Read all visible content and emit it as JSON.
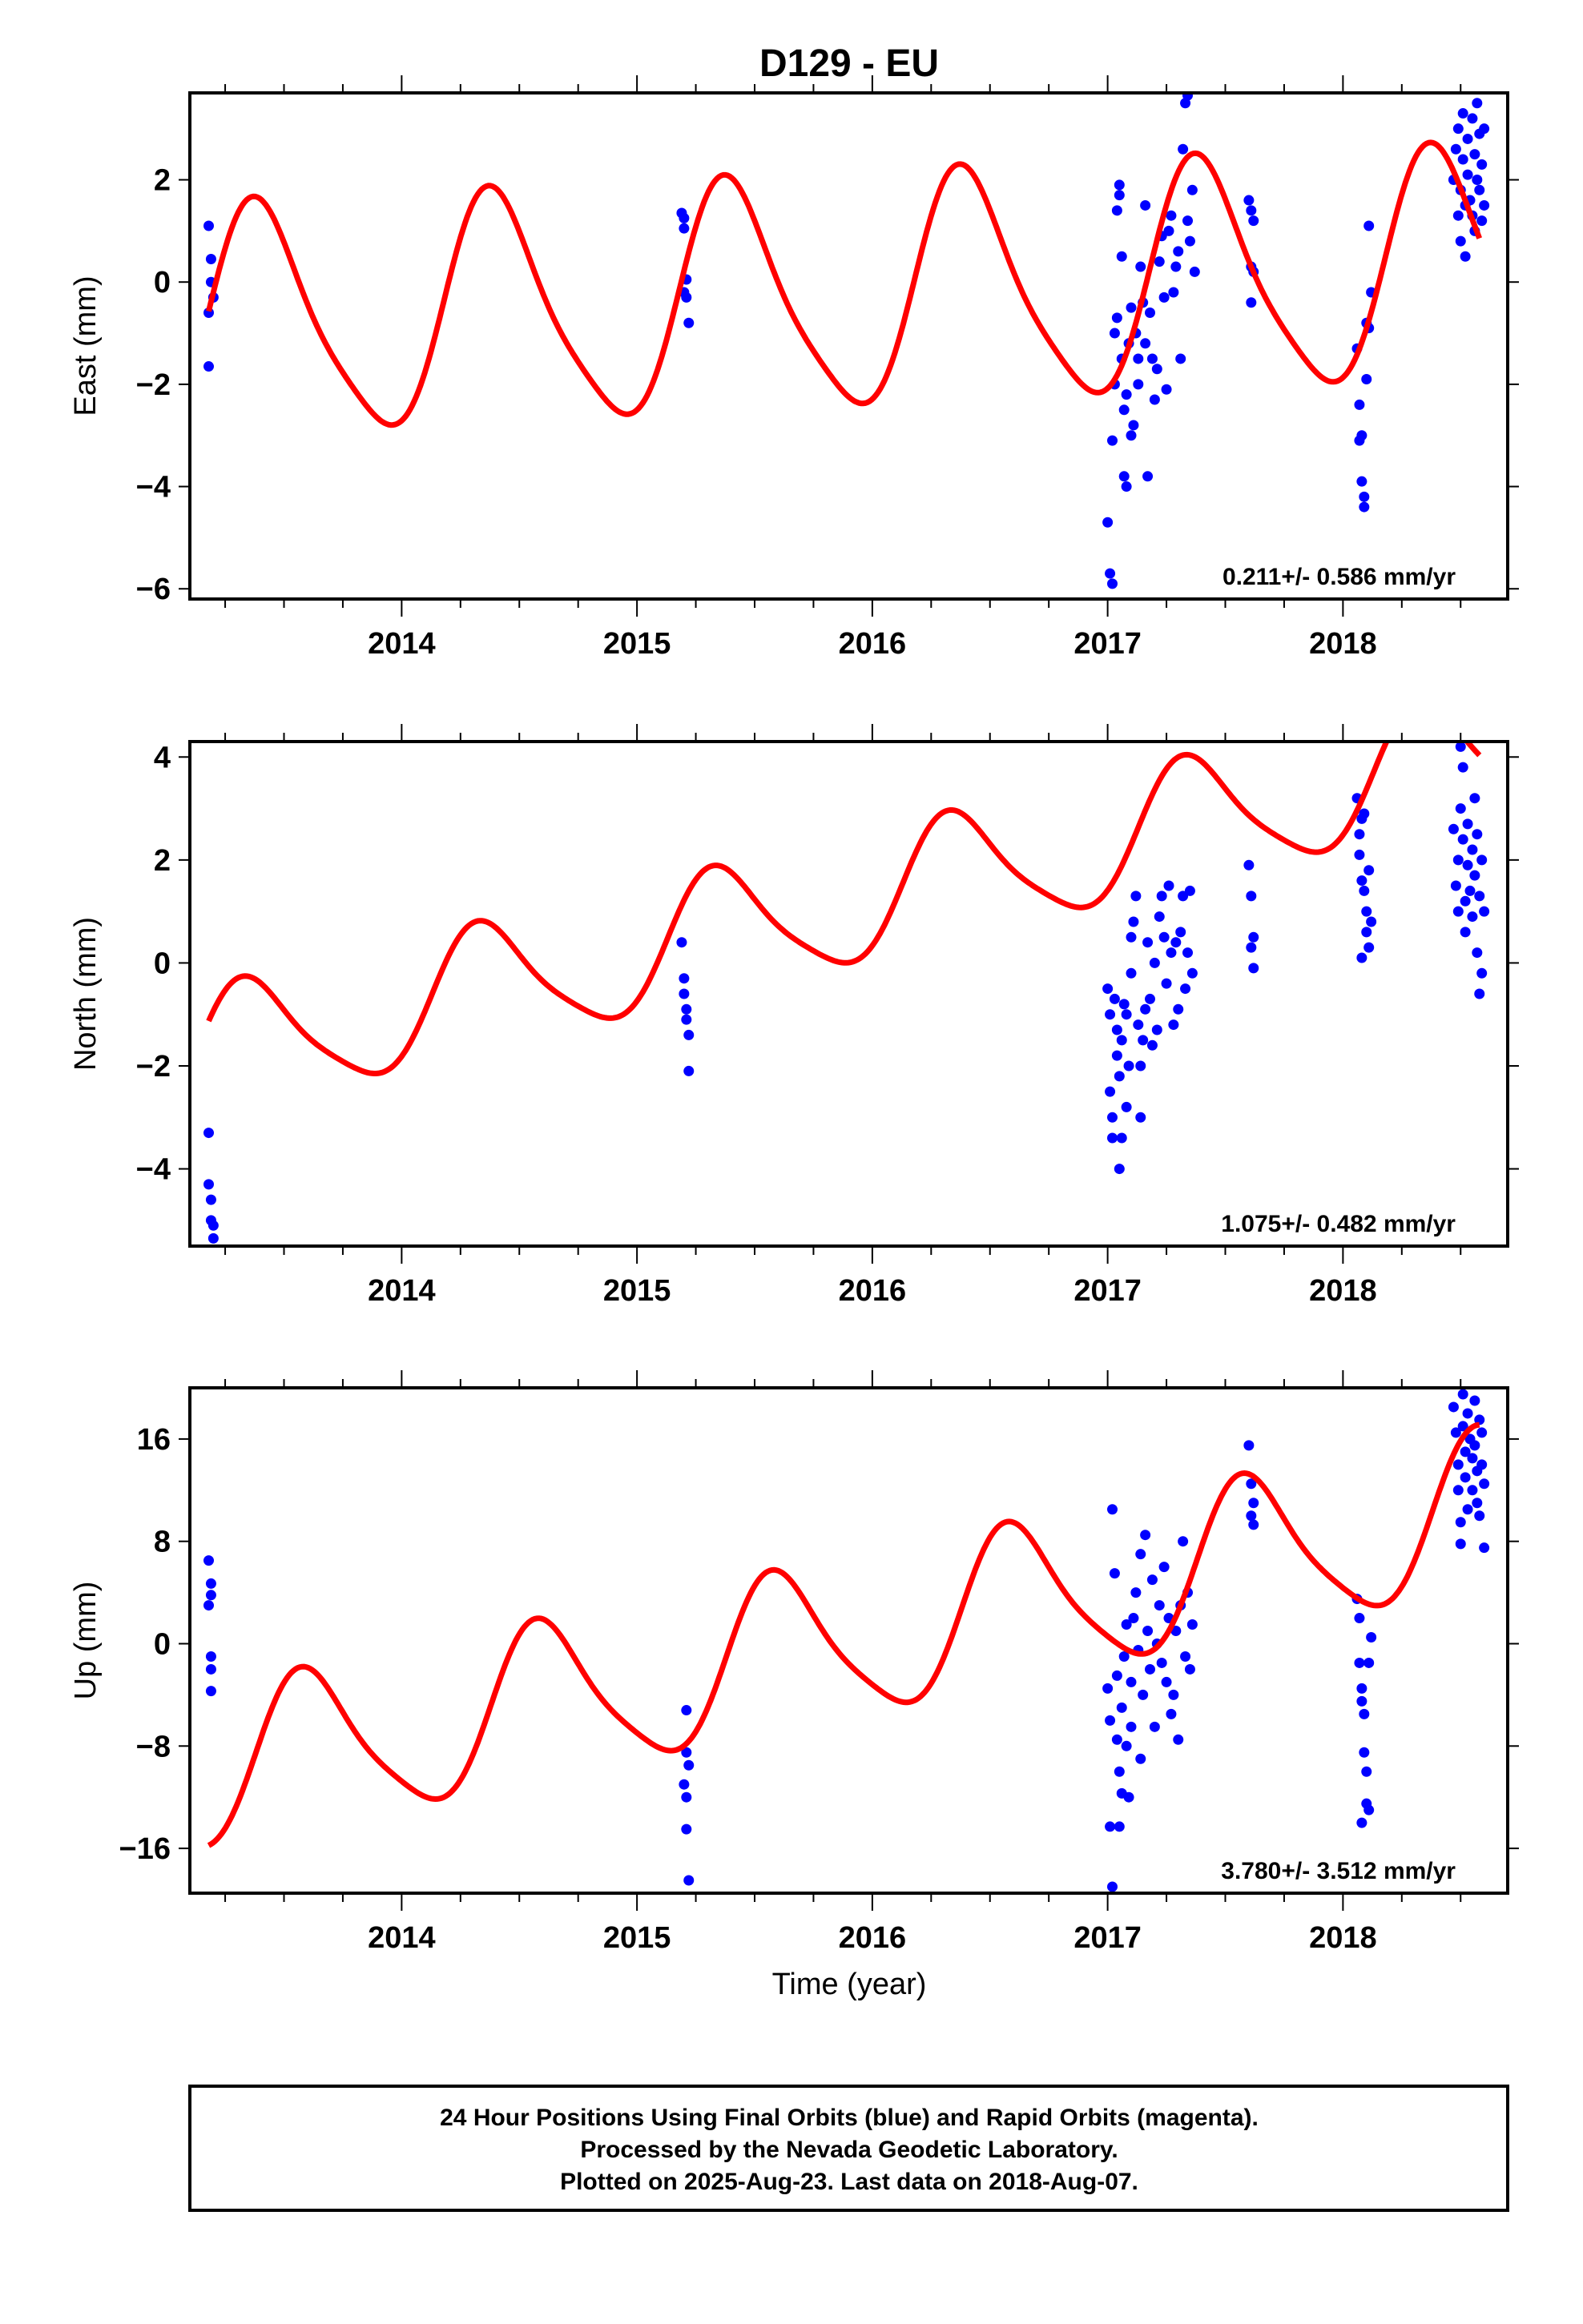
{
  "title": "D129 - EU",
  "xlabel": "Time (year)",
  "x_ticks": [
    "2014",
    "2015",
    "2016",
    "2017",
    "2018"
  ],
  "colors": {
    "data": "#0000ff",
    "model": "#ff0000",
    "frame": "#000000"
  },
  "footer": {
    "line1": "24 Hour Positions Using Final Orbits (blue) and Rapid Orbits (magenta).",
    "line2": "Processed by the Nevada Geodetic Laboratory.",
    "line3": "Plotted on 2025-Aug-23. Last data on 2018-Aug-07."
  },
  "chart_data": [
    {
      "type": "scatter",
      "ylabel": "East (mm)",
      "rate": "0.211+/- 0.586 mm/yr",
      "xlim": [
        2013.1,
        2018.7
      ],
      "ylim": [
        -6.2,
        3.7
      ],
      "y_ticks": [
        -6,
        -4,
        -2,
        0,
        2
      ],
      "y_tick_labels": [
        "−6",
        "−4",
        "−2",
        "0",
        "2"
      ],
      "model": {
        "series": "model",
        "mid": -0.85,
        "rate": 0.211,
        "amp": 2.2,
        "phase": 2013.2,
        "x_start": 2013.18,
        "x_end": 2018.58
      },
      "points": [
        [
          2013.18,
          1.1
        ],
        [
          2013.19,
          0.45
        ],
        [
          2013.19,
          0.0
        ],
        [
          2013.2,
          -0.3
        ],
        [
          2013.18,
          -0.6
        ],
        [
          2013.18,
          -1.65
        ],
        [
          2015.19,
          1.35
        ],
        [
          2015.2,
          1.05
        ],
        [
          2015.2,
          1.25
        ],
        [
          2015.21,
          0.05
        ],
        [
          2015.2,
          -0.2
        ],
        [
          2015.21,
          -0.3
        ],
        [
          2015.22,
          -0.8
        ],
        [
          2017.0,
          -4.7
        ],
        [
          2017.01,
          -5.7
        ],
        [
          2017.02,
          -5.9
        ],
        [
          2017.02,
          -3.1
        ],
        [
          2017.03,
          -2.0
        ],
        [
          2017.03,
          -1.0
        ],
        [
          2017.04,
          -0.7
        ],
        [
          2017.04,
          1.4
        ],
        [
          2017.05,
          1.9
        ],
        [
          2017.05,
          1.7
        ],
        [
          2017.06,
          0.5
        ],
        [
          2017.06,
          -1.5
        ],
        [
          2017.07,
          -2.5
        ],
        [
          2017.07,
          -3.8
        ],
        [
          2017.08,
          -4.0
        ],
        [
          2017.08,
          -2.2
        ],
        [
          2017.09,
          -1.2
        ],
        [
          2017.1,
          -0.5
        ],
        [
          2017.1,
          -3.0
        ],
        [
          2017.11,
          -2.8
        ],
        [
          2017.12,
          -1.0
        ],
        [
          2017.13,
          -2.0
        ],
        [
          2017.13,
          -1.5
        ],
        [
          2017.14,
          0.3
        ],
        [
          2017.15,
          -0.4
        ],
        [
          2017.16,
          1.5
        ],
        [
          2017.16,
          -1.2
        ],
        [
          2017.17,
          -3.8
        ],
        [
          2017.18,
          -0.6
        ],
        [
          2017.19,
          -1.5
        ],
        [
          2017.2,
          -2.3
        ],
        [
          2017.21,
          -1.7
        ],
        [
          2017.22,
          0.4
        ],
        [
          2017.23,
          0.9
        ],
        [
          2017.24,
          -0.3
        ],
        [
          2017.25,
          -2.1
        ],
        [
          2017.26,
          1.0
        ],
        [
          2017.27,
          1.3
        ],
        [
          2017.28,
          -0.2
        ],
        [
          2017.29,
          0.3
        ],
        [
          2017.3,
          0.6
        ],
        [
          2017.31,
          -1.5
        ],
        [
          2017.32,
          2.6
        ],
        [
          2017.33,
          3.5
        ],
        [
          2017.34,
          3.65
        ],
        [
          2017.34,
          1.2
        ],
        [
          2017.35,
          0.8
        ],
        [
          2017.36,
          1.8
        ],
        [
          2017.37,
          0.2
        ],
        [
          2017.6,
          1.6
        ],
        [
          2017.61,
          1.4
        ],
        [
          2017.62,
          1.2
        ],
        [
          2017.61,
          0.3
        ],
        [
          2017.62,
          0.2
        ],
        [
          2017.61,
          -0.4
        ],
        [
          2018.06,
          -1.3
        ],
        [
          2018.07,
          -2.4
        ],
        [
          2018.07,
          -3.1
        ],
        [
          2018.08,
          -3.0
        ],
        [
          2018.08,
          -3.9
        ],
        [
          2018.09,
          -4.2
        ],
        [
          2018.09,
          -4.4
        ],
        [
          2018.1,
          -1.9
        ],
        [
          2018.1,
          -0.8
        ],
        [
          2018.11,
          -0.9
        ],
        [
          2018.11,
          1.1
        ],
        [
          2018.12,
          -0.2
        ],
        [
          2018.47,
          2.0
        ],
        [
          2018.48,
          2.6
        ],
        [
          2018.49,
          1.3
        ],
        [
          2018.49,
          3.0
        ],
        [
          2018.5,
          1.8
        ],
        [
          2018.5,
          0.8
        ],
        [
          2018.51,
          2.4
        ],
        [
          2018.51,
          3.3
        ],
        [
          2018.52,
          1.5
        ],
        [
          2018.52,
          0.5
        ],
        [
          2018.53,
          2.1
        ],
        [
          2018.53,
          2.8
        ],
        [
          2018.54,
          1.6
        ],
        [
          2018.55,
          3.2
        ],
        [
          2018.55,
          1.3
        ],
        [
          2018.56,
          2.5
        ],
        [
          2018.56,
          1.0
        ],
        [
          2018.57,
          3.5
        ],
        [
          2018.57,
          2.0
        ],
        [
          2018.58,
          1.8
        ],
        [
          2018.58,
          2.9
        ],
        [
          2018.59,
          1.2
        ],
        [
          2018.59,
          2.3
        ],
        [
          2018.6,
          3.0
        ],
        [
          2018.6,
          1.5
        ]
      ]
    },
    {
      "type": "scatter",
      "ylabel": "North (mm)",
      "rate": "1.075+/- 0.482 mm/yr",
      "xlim": [
        2013.1,
        2018.7
      ],
      "ylim": [
        -5.5,
        4.3
      ],
      "y_ticks": [
        -4,
        -2,
        0,
        2,
        4
      ],
      "y_tick_labels": [
        "−4",
        "−2",
        "0",
        "2",
        "4"
      ],
      "model": {
        "series": "model",
        "mid": -1.75,
        "rate": 1.075,
        "amp": 1.2,
        "phase": 2013.15,
        "x_start": 2013.18,
        "x_end": 2018.58
      },
      "points": [
        [
          2013.18,
          -3.3
        ],
        [
          2013.18,
          -4.3
        ],
        [
          2013.19,
          -4.6
        ],
        [
          2013.19,
          -5.0
        ],
        [
          2013.2,
          -5.1
        ],
        [
          2013.2,
          -5.35
        ],
        [
          2015.19,
          0.4
        ],
        [
          2015.2,
          -0.3
        ],
        [
          2015.2,
          -0.6
        ],
        [
          2015.21,
          -0.9
        ],
        [
          2015.21,
          -1.1
        ],
        [
          2015.22,
          -1.4
        ],
        [
          2015.22,
          -2.1
        ],
        [
          2017.0,
          -0.5
        ],
        [
          2017.01,
          -1.0
        ],
        [
          2017.01,
          -2.5
        ],
        [
          2017.02,
          -3.0
        ],
        [
          2017.02,
          -3.4
        ],
        [
          2017.03,
          -0.7
        ],
        [
          2017.04,
          -1.3
        ],
        [
          2017.04,
          -1.8
        ],
        [
          2017.05,
          -2.2
        ],
        [
          2017.05,
          -4.0
        ],
        [
          2017.06,
          -3.4
        ],
        [
          2017.06,
          -1.5
        ],
        [
          2017.07,
          -0.8
        ],
        [
          2017.08,
          -1.0
        ],
        [
          2017.08,
          -2.8
        ],
        [
          2017.09,
          -2.0
        ],
        [
          2017.1,
          -0.2
        ],
        [
          2017.1,
          0.5
        ],
        [
          2017.11,
          0.8
        ],
        [
          2017.12,
          1.3
        ],
        [
          2017.13,
          -1.2
        ],
        [
          2017.14,
          -2.0
        ],
        [
          2017.14,
          -3.0
        ],
        [
          2017.15,
          -1.5
        ],
        [
          2017.16,
          -0.9
        ],
        [
          2017.17,
          0.4
        ],
        [
          2017.18,
          -0.7
        ],
        [
          2017.19,
          -1.6
        ],
        [
          2017.2,
          0.0
        ],
        [
          2017.21,
          -1.3
        ],
        [
          2017.22,
          0.9
        ],
        [
          2017.23,
          1.3
        ],
        [
          2017.24,
          0.5
        ],
        [
          2017.25,
          -0.4
        ],
        [
          2017.26,
          1.5
        ],
        [
          2017.27,
          0.2
        ],
        [
          2017.28,
          -1.2
        ],
        [
          2017.29,
          0.4
        ],
        [
          2017.3,
          -0.9
        ],
        [
          2017.31,
          0.6
        ],
        [
          2017.32,
          1.3
        ],
        [
          2017.33,
          -0.5
        ],
        [
          2017.34,
          0.2
        ],
        [
          2017.35,
          1.4
        ],
        [
          2017.36,
          -0.2
        ],
        [
          2017.6,
          1.9
        ],
        [
          2017.61,
          1.3
        ],
        [
          2017.62,
          0.5
        ],
        [
          2017.61,
          0.3
        ],
        [
          2017.62,
          -0.1
        ],
        [
          2018.06,
          3.2
        ],
        [
          2018.07,
          2.5
        ],
        [
          2018.07,
          2.1
        ],
        [
          2018.08,
          1.6
        ],
        [
          2018.08,
          2.8
        ],
        [
          2018.09,
          1.4
        ],
        [
          2018.09,
          2.9
        ],
        [
          2018.1,
          1.0
        ],
        [
          2018.1,
          0.6
        ],
        [
          2018.11,
          1.8
        ],
        [
          2018.11,
          0.3
        ],
        [
          2018.12,
          0.8
        ],
        [
          2018.08,
          0.1
        ],
        [
          2018.47,
          2.6
        ],
        [
          2018.48,
          1.5
        ],
        [
          2018.49,
          2.0
        ],
        [
          2018.49,
          1.0
        ],
        [
          2018.5,
          3.0
        ],
        [
          2018.5,
          4.2
        ],
        [
          2018.51,
          3.8
        ],
        [
          2018.51,
          2.4
        ],
        [
          2018.52,
          1.2
        ],
        [
          2018.52,
          0.6
        ],
        [
          2018.53,
          1.9
        ],
        [
          2018.53,
          2.7
        ],
        [
          2018.54,
          1.4
        ],
        [
          2018.55,
          0.9
        ],
        [
          2018.55,
          2.2
        ],
        [
          2018.56,
          3.2
        ],
        [
          2018.56,
          1.7
        ],
        [
          2018.57,
          0.2
        ],
        [
          2018.57,
          2.5
        ],
        [
          2018.58,
          -0.6
        ],
        [
          2018.58,
          1.3
        ],
        [
          2018.59,
          2.0
        ],
        [
          2018.59,
          -0.2
        ],
        [
          2018.6,
          1.0
        ]
      ]
    },
    {
      "type": "scatter",
      "ylabel": "Up (mm)",
      "rate": "3.780+/- 3.512 mm/yr",
      "xlim": [
        2013.1,
        2018.7
      ],
      "ylim": [
        -19.5,
        20.0
      ],
      "y_ticks": [
        -16,
        -8,
        0,
        8,
        16
      ],
      "y_tick_labels": [
        "−16",
        "−8",
        "0",
        "8",
        "16"
      ],
      "model": {
        "series": "model",
        "mid": -10.0,
        "rate": 3.78,
        "amp": 6.0,
        "phase": 2013.4,
        "x_start": 2013.18,
        "x_end": 2018.58
      },
      "points": [
        [
          2013.18,
          6.5
        ],
        [
          2013.19,
          4.7
        ],
        [
          2013.19,
          3.8
        ],
        [
          2013.18,
          3.0
        ],
        [
          2013.19,
          -1.0
        ],
        [
          2013.19,
          -2.0
        ],
        [
          2013.19,
          -3.7
        ],
        [
          2015.21,
          -5.2
        ],
        [
          2015.21,
          -8.5
        ],
        [
          2015.22,
          -9.5
        ],
        [
          2015.2,
          -11.0
        ],
        [
          2015.21,
          -12.0
        ],
        [
          2015.21,
          -14.5
        ],
        [
          2015.22,
          -18.5
        ],
        [
          2017.0,
          -3.5
        ],
        [
          2017.01,
          -6.0
        ],
        [
          2017.01,
          -14.3
        ],
        [
          2017.02,
          -19.0
        ],
        [
          2017.02,
          10.5
        ],
        [
          2017.03,
          5.5
        ],
        [
          2017.04,
          -2.5
        ],
        [
          2017.04,
          -7.5
        ],
        [
          2017.05,
          -10.0
        ],
        [
          2017.05,
          -14.3
        ],
        [
          2017.06,
          -11.7
        ],
        [
          2017.06,
          -5.0
        ],
        [
          2017.07,
          -1.0
        ],
        [
          2017.08,
          1.5
        ],
        [
          2017.08,
          -8.0
        ],
        [
          2017.09,
          -12.0
        ],
        [
          2017.1,
          -3.0
        ],
        [
          2017.1,
          -6.5
        ],
        [
          2017.11,
          2.0
        ],
        [
          2017.12,
          4.0
        ],
        [
          2017.13,
          -0.5
        ],
        [
          2017.14,
          7.0
        ],
        [
          2017.14,
          -9.0
        ],
        [
          2017.15,
          -4.0
        ],
        [
          2017.16,
          8.5
        ],
        [
          2017.17,
          1.0
        ],
        [
          2017.18,
          -2.0
        ],
        [
          2017.19,
          5.0
        ],
        [
          2017.2,
          -6.5
        ],
        [
          2017.21,
          0.0
        ],
        [
          2017.22,
          3.0
        ],
        [
          2017.23,
          -1.5
        ],
        [
          2017.24,
          6.0
        ],
        [
          2017.25,
          -3.0
        ],
        [
          2017.26,
          2.0
        ],
        [
          2017.27,
          -5.5
        ],
        [
          2017.28,
          -4.0
        ],
        [
          2017.29,
          1.0
        ],
        [
          2017.3,
          -7.5
        ],
        [
          2017.31,
          3.0
        ],
        [
          2017.32,
          8.0
        ],
        [
          2017.33,
          -1.0
        ],
        [
          2017.34,
          4.0
        ],
        [
          2017.35,
          -2.0
        ],
        [
          2017.36,
          1.5
        ],
        [
          2017.6,
          15.5
        ],
        [
          2017.61,
          12.5
        ],
        [
          2017.62,
          11.0
        ],
        [
          2017.61,
          10.0
        ],
        [
          2017.62,
          9.3
        ],
        [
          2018.06,
          3.5
        ],
        [
          2018.07,
          2.0
        ],
        [
          2018.07,
          -1.5
        ],
        [
          2018.08,
          -3.5
        ],
        [
          2018.08,
          -4.5
        ],
        [
          2018.09,
          -5.5
        ],
        [
          2018.09,
          -8.5
        ],
        [
          2018.1,
          -10.0
        ],
        [
          2018.1,
          -12.5
        ],
        [
          2018.11,
          -13.0
        ],
        [
          2018.11,
          -1.5
        ],
        [
          2018.12,
          0.5
        ],
        [
          2018.08,
          -14.0
        ],
        [
          2018.47,
          18.5
        ],
        [
          2018.48,
          16.5
        ],
        [
          2018.49,
          14.0
        ],
        [
          2018.49,
          12.0
        ],
        [
          2018.5,
          9.5
        ],
        [
          2018.5,
          7.8
        ],
        [
          2018.51,
          17.0
        ],
        [
          2018.51,
          19.5
        ],
        [
          2018.52,
          15.0
        ],
        [
          2018.52,
          13.0
        ],
        [
          2018.53,
          10.5
        ],
        [
          2018.53,
          18.0
        ],
        [
          2018.54,
          16.0
        ],
        [
          2018.55,
          14.5
        ],
        [
          2018.55,
          12.0
        ],
        [
          2018.56,
          19.0
        ],
        [
          2018.56,
          15.5
        ],
        [
          2018.57,
          13.5
        ],
        [
          2018.57,
          11.0
        ],
        [
          2018.58,
          17.5
        ],
        [
          2018.58,
          10.0
        ],
        [
          2018.59,
          14.0
        ],
        [
          2018.59,
          16.5
        ],
        [
          2018.6,
          7.5
        ],
        [
          2018.6,
          12.5
        ]
      ]
    }
  ]
}
